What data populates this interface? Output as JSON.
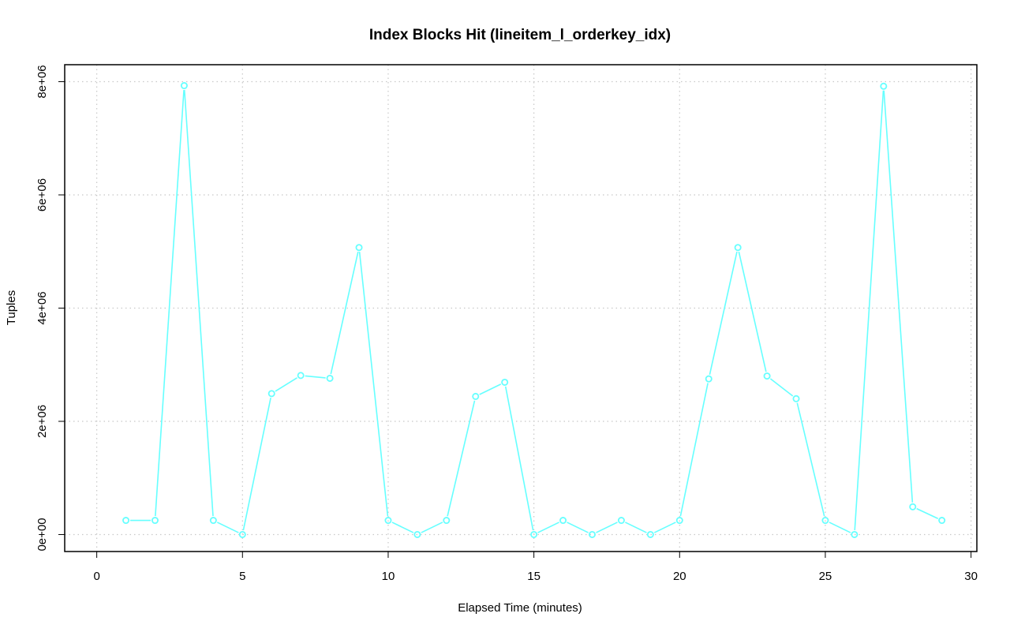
{
  "chart_data": {
    "type": "line",
    "title": "Index Blocks Hit (lineitem_l_orderkey_idx)",
    "xlabel": "Elapsed Time (minutes)",
    "ylabel": "Tuples",
    "xlim": [
      -1.1,
      30.2
    ],
    "ylim": [
      -300000,
      8300000
    ],
    "x_ticks": [
      0,
      5,
      10,
      15,
      20,
      25,
      30
    ],
    "x_tick_labels": [
      "0",
      "5",
      "10",
      "15",
      "20",
      "25",
      "30"
    ],
    "y_ticks": [
      0,
      2000000,
      4000000,
      6000000,
      8000000
    ],
    "y_tick_labels": [
      "0e+00",
      "2e+06",
      "4e+06",
      "6e+06",
      "8e+06"
    ],
    "grid": true,
    "series": [
      {
        "color": "#66ffff",
        "marker": "circle",
        "x": [
          1,
          2,
          3,
          4,
          5,
          6,
          7,
          8,
          9,
          10,
          11,
          12,
          13,
          14,
          15,
          16,
          17,
          18,
          19,
          20,
          21,
          22,
          23,
          24,
          25,
          26,
          27,
          28,
          29
        ],
        "y": [
          250000,
          250000,
          7930000,
          250000,
          0,
          2490000,
          2810000,
          2760000,
          5070000,
          250000,
          0,
          250000,
          2440000,
          2690000,
          0,
          250000,
          0,
          250000,
          0,
          250000,
          2750000,
          5070000,
          2800000,
          2400000,
          250000,
          0,
          7920000,
          490000,
          250000
        ]
      }
    ]
  }
}
